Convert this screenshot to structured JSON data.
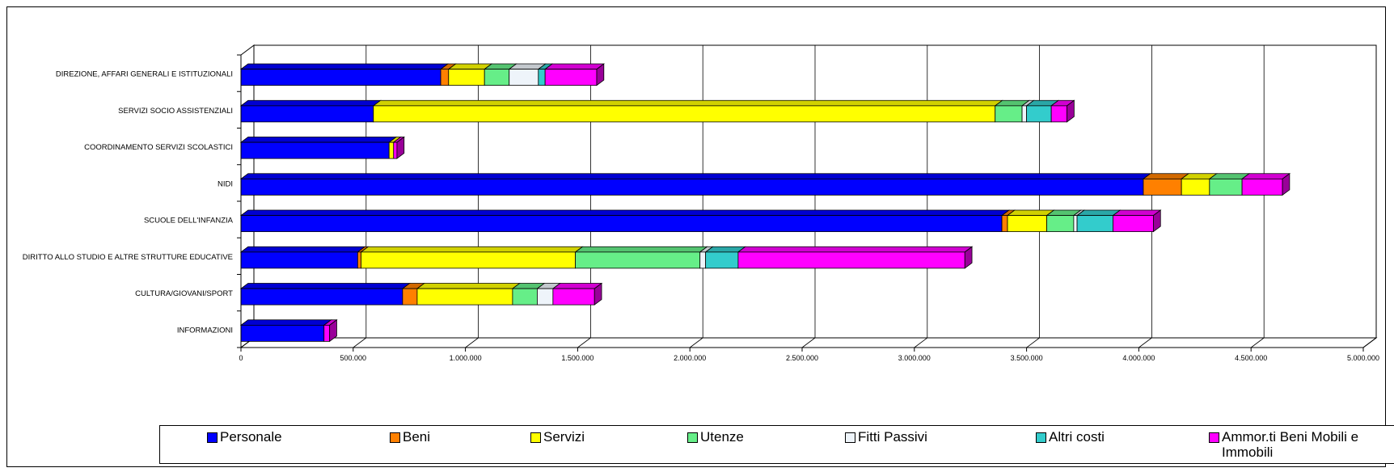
{
  "colors": {
    "Personale": "#0000FF",
    "Beni": "#FF8000",
    "Servizi": "#FFFF00",
    "Utenze": "#66EE88",
    "Fitti Passivi": "#EEF4FA",
    "Altri costi": "#33CCCC",
    "Ammor.ti Beni Mobili e Immobili": "#FF00FF"
  },
  "chart_data": {
    "type": "bar",
    "orientation": "horizontal",
    "stacked": true,
    "categories": [
      "DIREZIONE, AFFARI GENERALI E ISTITUZIONALI",
      "SERVIZI SOCIO ASSISTENZIALI",
      "COORDINAMENTO SERVIZI SCOLASTICI",
      "NIDI",
      "SCUOLE DELL'INFANZIA",
      "DIRITTO ALLO STUDIO E ALTRE STRUTTURE EDUCATIVE",
      "CULTURA/GIOVANI/SPORT",
      "INFORMAZIONI"
    ],
    "series": [
      {
        "name": "Personale",
        "values": [
          890000,
          590000,
          660000,
          4020000,
          3390000,
          520000,
          720000,
          370000
        ]
      },
      {
        "name": "Beni",
        "values": [
          35000,
          0,
          0,
          170000,
          25000,
          15000,
          65000,
          0
        ]
      },
      {
        "name": "Servizi",
        "values": [
          160000,
          2770000,
          20000,
          125000,
          175000,
          955000,
          425000,
          0
        ]
      },
      {
        "name": "Utenze",
        "values": [
          110000,
          120000,
          0,
          145000,
          120000,
          555000,
          110000,
          0
        ]
      },
      {
        "name": "Fitti Passivi",
        "values": [
          130000,
          20000,
          0,
          0,
          15000,
          25000,
          70000,
          0
        ]
      },
      {
        "name": "Altri costi",
        "values": [
          30000,
          110000,
          0,
          0,
          160000,
          145000,
          0,
          0
        ]
      },
      {
        "name": "Ammor.ti Beni Mobili e Immobili",
        "values": [
          230000,
          70000,
          15000,
          180000,
          180000,
          1010000,
          185000,
          25000
        ]
      }
    ],
    "xlim": [
      0,
      5000000
    ],
    "xticks": [
      "0",
      "500.000",
      "1.000.000",
      "1.500.000",
      "2.000.000",
      "2.500.000",
      "3.000.000",
      "3.500.000",
      "4.000.000",
      "4.500.000",
      "5.000.000"
    ],
    "grid": true,
    "legend_position": "bottom"
  },
  "legend": {
    "items": [
      {
        "label": "Personale",
        "color": "#0000FF"
      },
      {
        "label": "Beni",
        "color": "#FF8000"
      },
      {
        "label": "Servizi",
        "color": "#FFFF00"
      },
      {
        "label": "Utenze",
        "color": "#66EE88"
      },
      {
        "label": "Fitti Passivi",
        "color": "#EEF4FA"
      },
      {
        "label": "Altri costi",
        "color": "#33CCCC"
      },
      {
        "label": "Ammor.ti Beni Mobili e Immobili",
        "color": "#FF00FF"
      }
    ]
  }
}
